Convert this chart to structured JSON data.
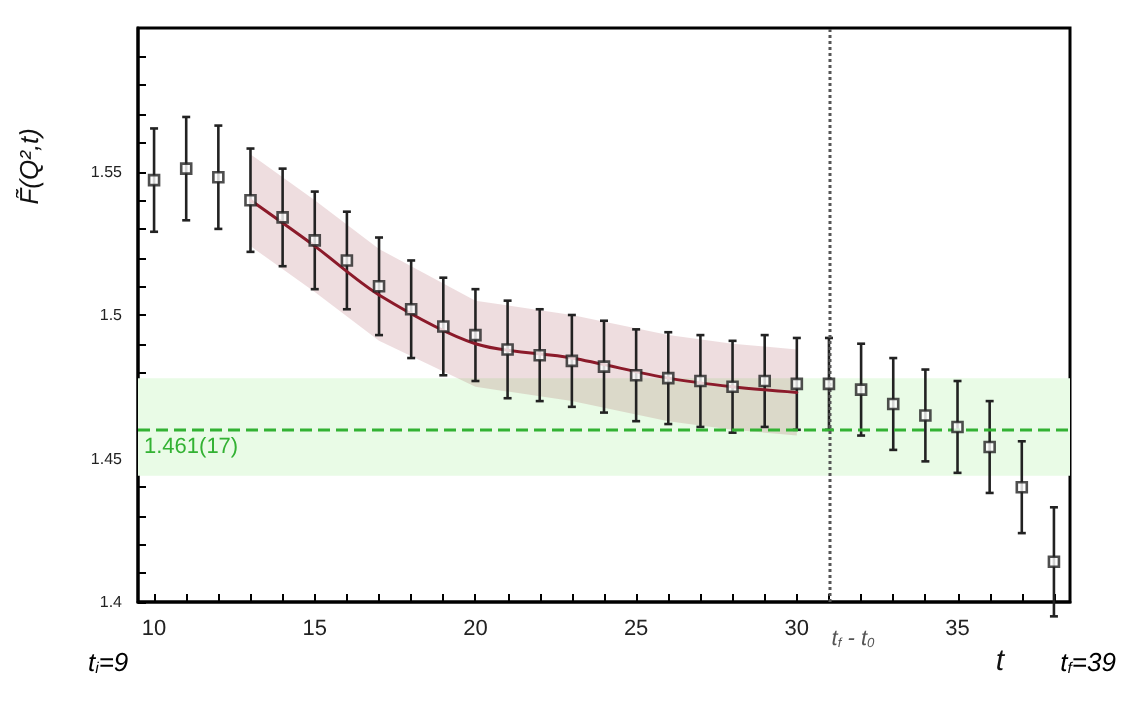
{
  "chart_data": {
    "type": "scatter",
    "xlabel": "t",
    "ylabel": "F̃(Q²,t)",
    "xlim": [
      9.5,
      38.5
    ],
    "xticks": [
      10,
      {
        "value": 11,
        "label": null
      },
      {
        "value": 12,
        "label": null
      },
      {
        "value": 13,
        "label": null
      },
      {
        "value": 14,
        "label": null
      },
      15,
      {
        "value": 16,
        "label": null
      },
      {
        "value": 17,
        "label": null
      },
      {
        "value": 18,
        "label": null
      },
      {
        "value": 19,
        "label": null
      },
      20,
      {
        "value": 21,
        "label": null
      },
      {
        "value": 22,
        "label": null
      },
      {
        "value": 23,
        "label": null
      },
      {
        "value": 24,
        "label": null
      },
      25,
      {
        "value": 26,
        "label": null
      },
      {
        "value": 27,
        "label": null
      },
      {
        "value": 28,
        "label": null
      },
      {
        "value": 29,
        "label": null
      },
      30,
      {
        "value": 31,
        "label": null
      },
      {
        "value": 32,
        "label": null
      },
      {
        "value": 33,
        "label": null
      },
      {
        "value": 34,
        "label": null
      },
      35,
      {
        "value": 36,
        "label": null
      },
      {
        "value": 37,
        "label": null
      },
      {
        "value": 38,
        "label": null
      }
    ],
    "ylim": [
      1.4,
      1.6
    ],
    "yticks": [
      1.4,
      {
        "value": 1.41,
        "label": null
      },
      {
        "value": 1.42,
        "label": null
      },
      {
        "value": 1.43,
        "label": null
      },
      {
        "value": 1.44,
        "label": null
      },
      1.45,
      {
        "value": 1.46,
        "label": null
      },
      {
        "value": 1.47,
        "label": null
      },
      {
        "value": 1.48,
        "label": null
      },
      {
        "value": 1.49,
        "label": null
      },
      1.5,
      {
        "value": 1.51,
        "label": null
      },
      {
        "value": 1.52,
        "label": null
      },
      {
        "value": 1.53,
        "label": null
      },
      {
        "value": 1.54,
        "label": null
      },
      1.55,
      {
        "value": 1.56,
        "label": null
      },
      {
        "value": 1.57,
        "label": null
      },
      {
        "value": 1.58,
        "label": null
      },
      {
        "value": 1.59,
        "label": null
      }
    ],
    "series": [
      {
        "color": "#222222",
        "marker": "square",
        "x": [
          10,
          11,
          12,
          13,
          14,
          15,
          16,
          17,
          18,
          19,
          20,
          21,
          22,
          23,
          24,
          25,
          26,
          27,
          28,
          29,
          30,
          31,
          32,
          33,
          34,
          35,
          36,
          37,
          38
        ],
        "values": [
          1.547,
          1.551,
          1.548,
          1.54,
          1.534,
          1.526,
          1.519,
          1.51,
          1.502,
          1.496,
          1.493,
          1.488,
          1.486,
          1.484,
          1.482,
          1.479,
          1.478,
          1.477,
          1.475,
          1.477,
          1.476,
          1.476,
          1.474,
          1.469,
          1.465,
          1.461,
          1.454,
          1.44,
          1.414
        ],
        "errors": [
          0.018,
          0.018,
          0.018,
          0.018,
          0.017,
          0.017,
          0.017,
          0.017,
          0.017,
          0.017,
          0.016,
          0.017,
          0.016,
          0.016,
          0.016,
          0.016,
          0.016,
          0.016,
          0.016,
          0.016,
          0.016,
          0.016,
          0.016,
          0.016,
          0.016,
          0.016,
          0.016,
          0.016,
          0.019
        ]
      },
      {
        "type": "line",
        "color": "#8b1a2a",
        "marker": "none",
        "line_style": "solid",
        "x": [
          13,
          15,
          17,
          20,
          23,
          26,
          28,
          30
        ],
        "values": [
          1.54,
          1.524,
          1.507,
          1.49,
          1.485,
          1.478,
          1.475,
          1.473
        ],
        "lower": [
          1.524,
          1.508,
          1.491,
          1.475,
          1.47,
          1.463,
          1.46,
          1.458
        ],
        "upper": [
          1.556,
          1.54,
          1.523,
          1.505,
          1.5,
          1.493,
          1.49,
          1.488
        ]
      }
    ],
    "bands": [
      {
        "axis": "y",
        "from": 1.444,
        "to": 1.478,
        "color": "#e9fbe6"
      }
    ],
    "ref_lines": [
      {
        "axis": "y",
        "value": 1.461,
        "label": "1.461(17)",
        "color": "#33b233",
        "line_style": "dashed"
      },
      {
        "axis": "x",
        "value": 31,
        "label": "t$_{f}$ - t$_{0}$",
        "color": "#555555",
        "line_style": "dotted"
      }
    ],
    "annotations": [
      "t$_{i}$=9",
      "t$_{f}$=39"
    ],
    "grid": false
  }
}
